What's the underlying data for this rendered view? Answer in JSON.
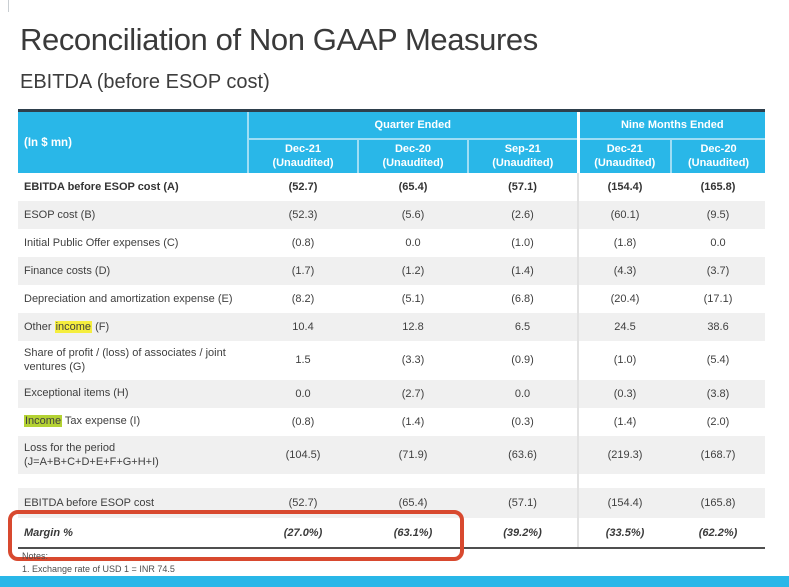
{
  "page": {
    "title": "Reconciliation of Non GAAP Measures",
    "subtitle": "EBITDA (before ESOP cost)",
    "notes_label": "Notes:",
    "notes_line_1": "1. Exchange rate of USD 1 = INR 74.5"
  },
  "colors": {
    "header_bg": "#29b7e8",
    "stripe_bg": "#f0f0f0",
    "table_top_border": "#2e3f4c",
    "table_bottom_border": "#4f4f4f",
    "highlight_yellow": "#f5ee3e",
    "highlight_green": "#b4d233",
    "annotation_red": "#d8492f",
    "footer_bar": "#29b7e8"
  },
  "table": {
    "unit_label": "(In $ mn)",
    "col_groups": [
      {
        "label": "Quarter Ended",
        "span": 3
      },
      {
        "label": "Nine Months Ended",
        "span": 2
      }
    ],
    "columns": [
      {
        "period": "Dec-21",
        "status": "(Unaudited)"
      },
      {
        "period": "Dec-20",
        "status": "(Unaudited)"
      },
      {
        "period": "Sep-21",
        "status": "(Unaudited)"
      },
      {
        "period": "Dec-21",
        "status": "(Unaudited)"
      },
      {
        "period": "Dec-20",
        "status": "(Unaudited)"
      }
    ],
    "rows": [
      {
        "name": "row-ebitda-before-esop-a",
        "style": "bold",
        "label_parts": [
          {
            "text": "EBITDA before ESOP cost (A)"
          }
        ],
        "values": [
          "(52.7)",
          "(65.4)",
          "(57.1)",
          "(154.4)",
          "(165.8)"
        ]
      },
      {
        "name": "row-esop-cost",
        "shaded": true,
        "label_parts": [
          {
            "text": "ESOP cost (B)"
          }
        ],
        "values": [
          "(52.3)",
          "(5.6)",
          "(2.6)",
          "(60.1)",
          "(9.5)"
        ]
      },
      {
        "name": "row-ipo-expenses",
        "label_parts": [
          {
            "text": "Initial Public Offer expenses (C)"
          }
        ],
        "values": [
          "(0.8)",
          "0.0",
          "(1.0)",
          "(1.8)",
          "0.0"
        ]
      },
      {
        "name": "row-finance-costs",
        "shaded": true,
        "label_parts": [
          {
            "text": "Finance costs (D)"
          }
        ],
        "values": [
          "(1.7)",
          "(1.2)",
          "(1.4)",
          "(4.3)",
          "(3.7)"
        ]
      },
      {
        "name": "row-depreciation-amortization",
        "label_parts": [
          {
            "text": "Depreciation and amortization expense (E)"
          }
        ],
        "values": [
          "(8.2)",
          "(5.1)",
          "(6.8)",
          "(20.4)",
          "(17.1)"
        ]
      },
      {
        "name": "row-other-income",
        "shaded": true,
        "label_parts": [
          {
            "text": "Other "
          },
          {
            "text": "income",
            "highlight": "yellow"
          },
          {
            "text": " (F)"
          }
        ],
        "values": [
          "10.4",
          "12.8",
          "6.5",
          "24.5",
          "38.6"
        ]
      },
      {
        "name": "row-share-of-profit",
        "label_parts": [
          {
            "text": "Share of profit / (loss) of associates / joint ventures (G)"
          }
        ],
        "values": [
          "1.5",
          "(3.3)",
          "(0.9)",
          "(1.0)",
          "(5.4)"
        ]
      },
      {
        "name": "row-exceptional-items",
        "shaded": true,
        "label_parts": [
          {
            "text": "Exceptional items (H)"
          }
        ],
        "values": [
          "0.0",
          "(2.7)",
          "0.0",
          "(0.3)",
          "(3.8)"
        ]
      },
      {
        "name": "row-income-tax-expense",
        "label_parts": [
          {
            "text": "Income",
            "highlight": "green"
          },
          {
            "text": " Tax expense (I)"
          }
        ],
        "values": [
          "(0.8)",
          "(1.4)",
          "(0.3)",
          "(1.4)",
          "(2.0)"
        ]
      },
      {
        "name": "row-loss-for-period",
        "shaded": true,
        "label_parts": [
          {
            "text": "Loss for the period"
          },
          {
            "break": true
          },
          {
            "text": "(J=A+B+C+D+E+F+G+H+I)"
          }
        ],
        "values": [
          "(104.5)",
          "(71.9)",
          "(63.6)",
          "(219.3)",
          "(168.7)"
        ]
      },
      {
        "name": "row-spacer",
        "spacer": true
      },
      {
        "name": "row-ebitda-before-esop",
        "shaded": true,
        "style": "tall",
        "label_parts": [
          {
            "text": "EBITDA before ESOP cost"
          }
        ],
        "values": [
          "(52.7)",
          "(65.4)",
          "(57.1)",
          "(154.4)",
          "(165.8)"
        ]
      },
      {
        "name": "row-margin-pct",
        "style": "italic tall",
        "label_parts": [
          {
            "text": "Margin %"
          }
        ],
        "values": [
          "(27.0%)",
          "(63.1%)",
          "(39.2%)",
          "(33.5%)",
          "(62.2%)"
        ]
      }
    ]
  }
}
